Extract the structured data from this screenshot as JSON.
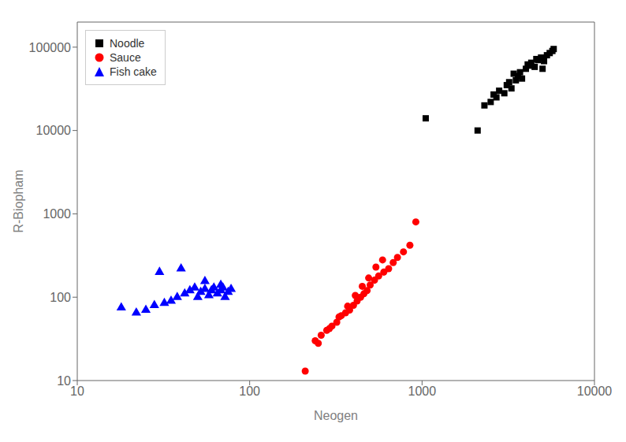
{
  "chart_data": {
    "type": "scatter",
    "xlabel": "Neogen",
    "ylabel": "R-Biopham",
    "log": true,
    "xlim": [
      10,
      10000
    ],
    "ylim": [
      10,
      200000
    ],
    "xticks": [
      10,
      100,
      1000,
      10000
    ],
    "yticks": [
      10,
      100,
      1000,
      10000,
      100000
    ],
    "grid": false,
    "legend": "upper left",
    "series": [
      {
        "name": "Noodle",
        "color": "#000000",
        "marker": "square",
        "x": [
          1050,
          2100,
          2300,
          2500,
          2700,
          2800,
          3000,
          3100,
          3200,
          3300,
          3500,
          3600,
          3700,
          3800,
          4000,
          4200,
          4300,
          4500,
          4700,
          4900,
          5100,
          5300,
          5500,
          5700,
          2600,
          3400,
          4100,
          4600,
          5000,
          5800
        ],
        "values": [
          14000,
          10000,
          20000,
          22000,
          25000,
          30000,
          28000,
          35000,
          38000,
          32000,
          40000,
          45000,
          50000,
          42000,
          55000,
          60000,
          65000,
          58000,
          70000,
          75000,
          68000,
          80000,
          85000,
          90000,
          27000,
          48000,
          62000,
          72000,
          55000,
          95000
        ]
      },
      {
        "name": "Sauce",
        "color": "#ff0000",
        "marker": "circle",
        "x": [
          210,
          240,
          260,
          280,
          300,
          320,
          340,
          360,
          380,
          400,
          420,
          440,
          460,
          480,
          500,
          530,
          560,
          600,
          640,
          680,
          720,
          780,
          850,
          920,
          250,
          290,
          330,
          370,
          410,
          450,
          490,
          540,
          590
        ],
        "values": [
          13,
          30,
          35,
          40,
          45,
          50,
          60,
          65,
          70,
          80,
          90,
          100,
          110,
          120,
          140,
          160,
          180,
          200,
          220,
          260,
          300,
          350,
          420,
          800,
          28,
          42,
          58,
          78,
          105,
          135,
          170,
          230,
          280
        ]
      },
      {
        "name": "Fish cake",
        "color": "#0000ff",
        "marker": "triangle",
        "x": [
          18,
          22,
          25,
          28,
          32,
          35,
          38,
          42,
          45,
          48,
          50,
          52,
          55,
          58,
          60,
          62,
          65,
          68,
          70,
          72,
          75,
          78,
          30,
          40,
          55,
          68
        ],
        "values": [
          75,
          65,
          70,
          80,
          85,
          90,
          100,
          110,
          120,
          130,
          100,
          115,
          125,
          105,
          120,
          130,
          110,
          120,
          130,
          100,
          115,
          125,
          200,
          220,
          155,
          140
        ]
      }
    ]
  }
}
